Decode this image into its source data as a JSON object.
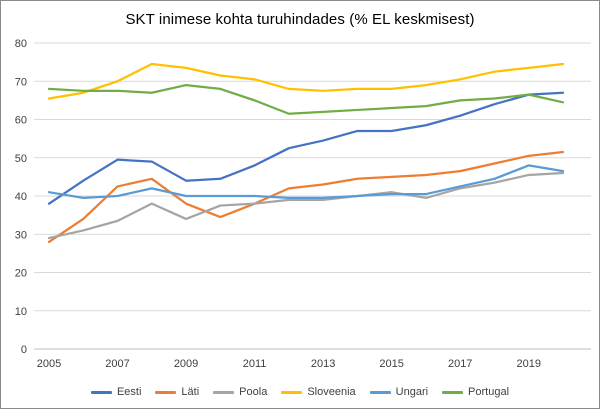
{
  "chart_data": {
    "type": "line",
    "title": "SKT inimese kohta turuhindades (% EL keskmisest)",
    "xlabel": "",
    "ylabel": "",
    "ylim": [
      0,
      80
    ],
    "yticks": [
      0,
      10,
      20,
      30,
      40,
      50,
      60,
      70,
      80
    ],
    "x": [
      2005,
      2006,
      2007,
      2008,
      2009,
      2010,
      2011,
      2012,
      2013,
      2014,
      2015,
      2016,
      2017,
      2018,
      2019,
      2020
    ],
    "xticks": [
      2005,
      2007,
      2009,
      2011,
      2013,
      2015,
      2017,
      2019
    ],
    "grid": true,
    "legend_position": "bottom",
    "gridline_color": "#D9D9D9",
    "axis_line_color": "#BFBFBF",
    "tick_label_color": "#404040",
    "series": [
      {
        "name": "Eesti",
        "color": "#4472C4",
        "values": [
          38,
          44,
          49.5,
          49,
          44,
          44.5,
          48,
          52.5,
          54.5,
          57,
          57,
          58.5,
          61,
          64,
          66.5,
          67
        ]
      },
      {
        "name": "Läti",
        "color": "#ED7D31",
        "values": [
          28,
          34,
          42.5,
          44.5,
          38,
          34.5,
          38,
          42,
          43,
          44.5,
          45,
          45.5,
          46.5,
          48.5,
          50.5,
          51.5
        ]
      },
      {
        "name": "Poola",
        "color": "#A5A5A5",
        "values": [
          29,
          31,
          33.5,
          38,
          34,
          37.5,
          38,
          39,
          39,
          40,
          41,
          39.5,
          42,
          43.5,
          45.5,
          46
        ]
      },
      {
        "name": "Sloveenia",
        "color": "#FFC000",
        "values": [
          65.5,
          67,
          70,
          74.5,
          73.5,
          71.5,
          70.5,
          68,
          67.5,
          68,
          68,
          69,
          70.5,
          72.5,
          73.5,
          74.5
        ]
      },
      {
        "name": "Ungari",
        "color": "#5B9BD5",
        "values": [
          41,
          39.5,
          40,
          42,
          40,
          40,
          40,
          39.5,
          39.5,
          40,
          40.5,
          40.5,
          42.5,
          44.5,
          48,
          46.5
        ]
      },
      {
        "name": "Portugal",
        "color": "#70AD47",
        "values": [
          68,
          67.5,
          67.5,
          67,
          69,
          68,
          65,
          61.5,
          62,
          62.5,
          63,
          63.5,
          65,
          65.5,
          66.5,
          64.5
        ]
      }
    ]
  }
}
